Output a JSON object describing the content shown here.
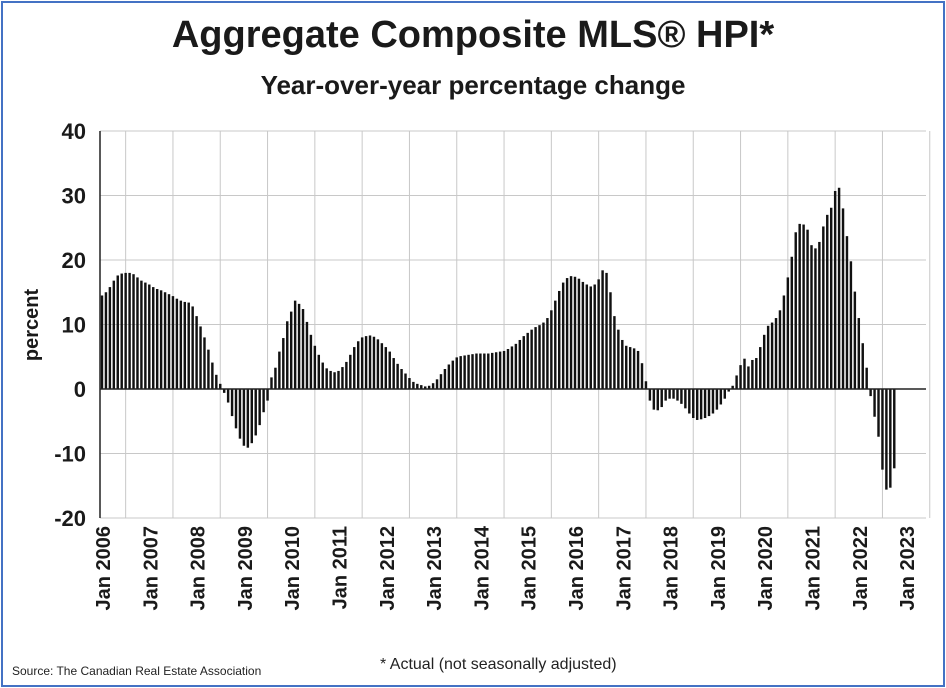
{
  "chart_data": {
    "type": "bar",
    "title": "Aggregate Composite MLS® HPI*",
    "subtitle": "Year-over-year percentage change",
    "xlabel": "",
    "ylabel": "percent",
    "ylim": [
      -20,
      40
    ],
    "yticks": [
      40,
      30,
      20,
      10,
      0,
      -10,
      -20
    ],
    "x_tick_labels": [
      "Jan 2006",
      "Jan 2007",
      "Jan 2008",
      "Jan 2009",
      "Jan 2010",
      "Jan 2011",
      "Jan 2012",
      "Jan 2013",
      "Jan 2014",
      "Jan 2015",
      "Jan 2016",
      "Jan 2017",
      "Jan 2018",
      "Jan 2019",
      "Jan 2020",
      "Jan 2021",
      "Jan 2022",
      "Jan 2023"
    ],
    "start": "Jan 2006",
    "frequency": "monthly",
    "grid": true,
    "series": [
      {
        "name": "Year-over-year percentage change",
        "values": [
          14.5,
          15.0,
          15.8,
          16.8,
          17.6,
          17.9,
          18.0,
          18.0,
          17.8,
          17.3,
          16.8,
          16.5,
          16.2,
          15.8,
          15.5,
          15.3,
          15.0,
          14.7,
          14.4,
          14.0,
          13.7,
          13.5,
          13.4,
          12.8,
          11.3,
          9.7,
          8.0,
          6.1,
          4.1,
          2.2,
          0.8,
          -0.6,
          -2.1,
          -4.2,
          -6.1,
          -7.7,
          -8.8,
          -9.1,
          -8.4,
          -7.2,
          -5.6,
          -3.6,
          -1.8,
          1.8,
          3.3,
          5.8,
          7.9,
          10.5,
          12.0,
          13.7,
          13.2,
          12.4,
          10.4,
          8.4,
          6.7,
          5.3,
          4.1,
          3.2,
          2.8,
          2.6,
          2.8,
          3.4,
          4.2,
          5.3,
          6.5,
          7.4,
          8.0,
          8.2,
          8.3,
          8.1,
          7.7,
          7.1,
          6.5,
          5.8,
          4.8,
          3.9,
          3.1,
          2.4,
          1.7,
          1.1,
          0.8,
          0.6,
          0.4,
          0.5,
          0.9,
          1.5,
          2.3,
          3.1,
          3.8,
          4.4,
          4.9,
          5.1,
          5.2,
          5.3,
          5.4,
          5.5,
          5.5,
          5.5,
          5.5,
          5.6,
          5.7,
          5.8,
          5.9,
          6.2,
          6.6,
          7.0,
          7.6,
          8.2,
          8.7,
          9.2,
          9.6,
          9.9,
          10.3,
          11.0,
          12.2,
          13.7,
          15.2,
          16.5,
          17.2,
          17.5,
          17.4,
          17.1,
          16.6,
          16.2,
          15.9,
          16.2,
          17.0,
          18.4,
          18.0,
          15.0,
          11.3,
          9.2,
          7.6,
          6.7,
          6.5,
          6.3,
          5.9,
          4.0,
          1.2,
          -1.8,
          -3.2,
          -3.3,
          -2.8,
          -1.8,
          -1.5,
          -1.5,
          -1.8,
          -2.3,
          -3.0,
          -3.8,
          -4.5,
          -4.8,
          -4.7,
          -4.5,
          -4.2,
          -3.8,
          -3.2,
          -2.4,
          -1.5,
          -0.4,
          0.5,
          2.1,
          3.7,
          4.7,
          3.5,
          4.5,
          4.8,
          6.5,
          8.4,
          9.8,
          10.3,
          11.0,
          12.2,
          14.5,
          17.3,
          20.5,
          24.3,
          25.6,
          25.5,
          24.7,
          22.3,
          21.8,
          22.8,
          25.2,
          27.0,
          28.1,
          30.7,
          31.2,
          28.0,
          23.7,
          19.8,
          15.1,
          11.0,
          7.1,
          3.3,
          -1.1,
          -4.3,
          -7.4,
          -12.5,
          -15.6,
          -15.3,
          -12.3
        ]
      }
    ]
  },
  "source_note": "Source: The Canadian Real Estate Association",
  "footnote": "* Actual (not seasonally adjusted)"
}
